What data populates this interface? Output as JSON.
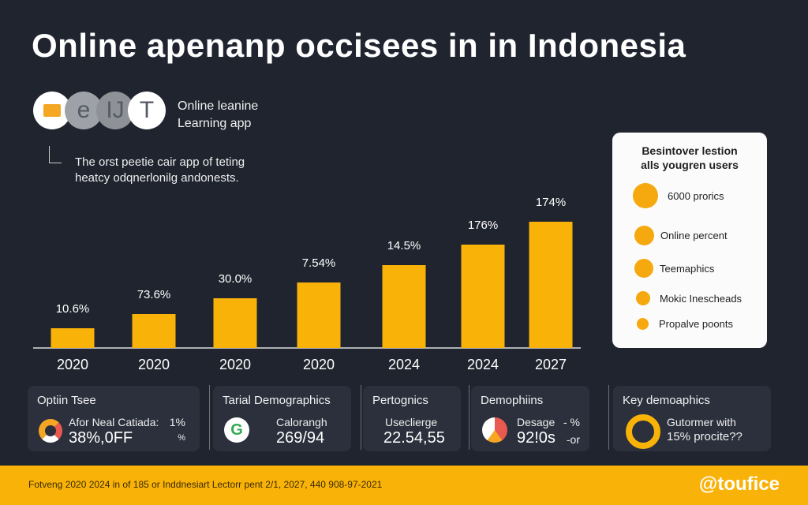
{
  "header": {
    "title": "Online apenanp occisees in in Indonesia"
  },
  "logo": {
    "letters": [
      "e",
      "IJ",
      "T"
    ]
  },
  "app": {
    "line1": "Online leanine",
    "line2": "Learning app"
  },
  "description": {
    "line1": "The orst peetie cair app of teting",
    "line2": "heatcy odqnerlonilg andonests."
  },
  "chart_data": {
    "type": "bar",
    "title": "Online apenanp occisees in in Indonesia",
    "categories": [
      "2020",
      "2020",
      "2020",
      "2020",
      "2024",
      "2024",
      "2027"
    ],
    "values": [
      25,
      43,
      63,
      83,
      105,
      131,
      160
    ],
    "data_labels": [
      "10.6%",
      "73.6%",
      "30.0%",
      "7.54%",
      "14.5%",
      "176%",
      "174%"
    ],
    "color": "#f9b208",
    "xlabel": "",
    "ylabel": "",
    "grid": false
  },
  "side_panel": {
    "title1": "Besintover lestion",
    "title2": "alls yougren users",
    "items": [
      "6000 prorics",
      "Online percent",
      "Teemaphics",
      "Mokic Inescheads",
      "Propalve poonts"
    ]
  },
  "cards": [
    {
      "title": "Optiin Tsee",
      "label": "Afor Neal Catiada:",
      "value": "38%,0FF",
      "side1": "1%",
      "side2": "%"
    },
    {
      "title": "Tarial Demographics",
      "label": "Calorangh",
      "value": "269/94"
    },
    {
      "title": "Pertognics",
      "label": "Useclierge",
      "value": "22.54,55"
    },
    {
      "title": "Demophiins",
      "label": "Desage",
      "value": "92!0s",
      "side1": "- %",
      "side2": "-or"
    },
    {
      "title": "Key demoaphics",
      "label": "Gutormer with",
      "value": "15% procite??"
    }
  ],
  "footer": {
    "text": "Fotveng 2020 2024 in of 185 or Inddnesiart Lectorr pent 2/1, 2027, 440 908-97-2021",
    "brand": "@toufice"
  },
  "colors": {
    "accent": "#f9b208",
    "bg": "#20242f"
  }
}
